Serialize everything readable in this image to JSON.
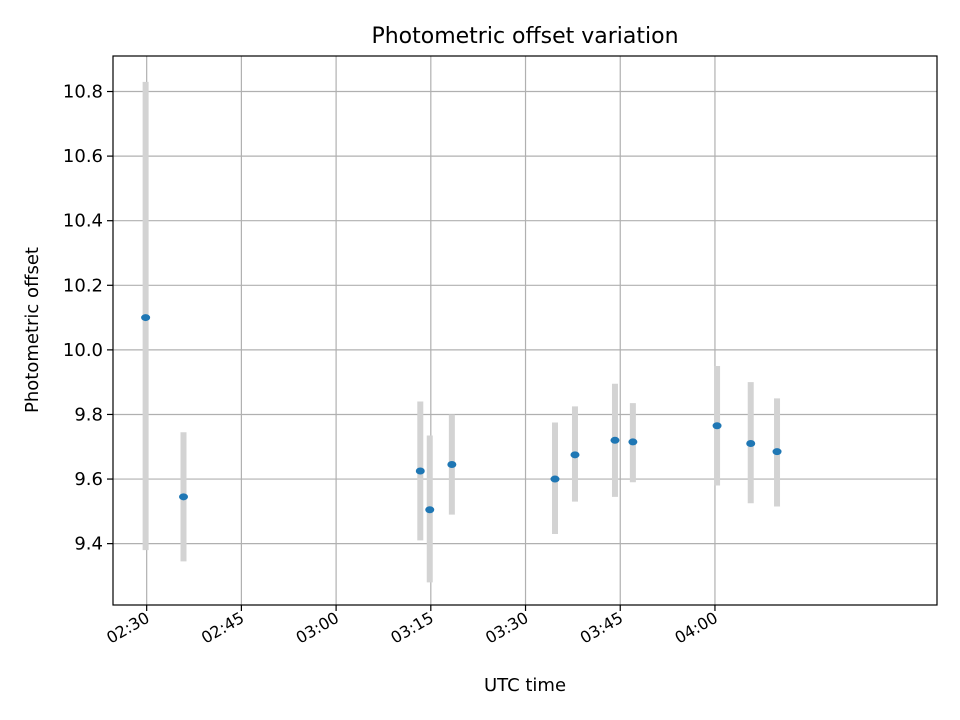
{
  "chart_data": {
    "type": "scatter",
    "title": "Photometric offset variation",
    "xlabel": "UTC time",
    "ylabel": "Photometric offset",
    "x_ticks": [
      "02:30",
      "02:45",
      "03:00",
      "03:15",
      "03:30",
      "03:45",
      "04:00"
    ],
    "y_ticks": [
      "9.4",
      "9.6",
      "9.8",
      "10.0",
      "10.2",
      "10.4",
      "10.6",
      "10.8"
    ],
    "xlim": [
      "02:24:40",
      "04:35:10"
    ],
    "ylim": [
      9.21,
      10.91
    ],
    "grid": true,
    "points": [
      {
        "x": "02:29:50",
        "y": 10.1,
        "err_low": 9.38,
        "err_high": 10.83
      },
      {
        "x": "02:35:50",
        "y": 9.545,
        "err_low": 9.345,
        "err_high": 9.745
      },
      {
        "x": "03:13:20",
        "y": 9.625,
        "err_low": 9.41,
        "err_high": 9.84
      },
      {
        "x": "03:14:50",
        "y": 9.505,
        "err_low": 9.28,
        "err_high": 9.735
      },
      {
        "x": "03:18:20",
        "y": 9.645,
        "err_low": 9.49,
        "err_high": 9.8
      },
      {
        "x": "03:34:40",
        "y": 9.6,
        "err_low": 9.43,
        "err_high": 9.775
      },
      {
        "x": "03:37:50",
        "y": 9.675,
        "err_low": 9.53,
        "err_high": 9.825
      },
      {
        "x": "03:44:10",
        "y": 9.72,
        "err_low": 9.545,
        "err_high": 9.895
      },
      {
        "x": "03:47:00",
        "y": 9.715,
        "err_low": 9.59,
        "err_high": 9.835
      },
      {
        "x": "04:00:20",
        "y": 9.765,
        "err_low": 9.58,
        "err_high": 9.95
      },
      {
        "x": "04:05:40",
        "y": 9.71,
        "err_low": 9.525,
        "err_high": 9.9
      },
      {
        "x": "04:09:50",
        "y": 9.685,
        "err_low": 9.515,
        "err_high": 9.85
      }
    ],
    "colors": {
      "marker": "#1f77b4",
      "errorbar": "#d3d3d3",
      "grid": "#b0b0b0"
    }
  }
}
